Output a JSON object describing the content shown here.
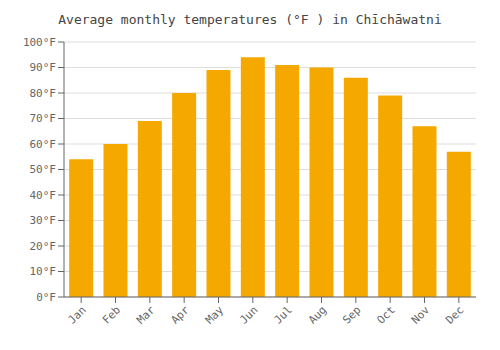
{
  "chart_data": {
    "type": "bar",
    "title": "Average monthly temperatures (°F ) in Chīchāwatni",
    "categories": [
      "Jan",
      "Feb",
      "Mar",
      "Apr",
      "May",
      "Jun",
      "Jul",
      "Aug",
      "Sep",
      "Oct",
      "Nov",
      "Dec"
    ],
    "values": [
      54,
      60,
      69,
      80,
      89,
      94,
      91,
      90,
      86,
      79,
      67,
      57
    ],
    "color": "#F5A800",
    "ylim": [
      0,
      100
    ],
    "yticks": [
      {
        "value": 0,
        "label": "0°F"
      },
      {
        "value": 10,
        "label": "10°F"
      },
      {
        "value": 20,
        "label": "20°F"
      },
      {
        "value": 30,
        "label": "30°F"
      },
      {
        "value": 40,
        "label": "40°F"
      },
      {
        "value": 50,
        "label": "50°F"
      },
      {
        "value": 60,
        "label": "60°F"
      },
      {
        "value": 70,
        "label": "70°F"
      },
      {
        "value": 80,
        "label": "80°F"
      },
      {
        "value": 90,
        "label": "90°F"
      },
      {
        "value": 100,
        "label": "100°F"
      }
    ],
    "grid": true
  }
}
